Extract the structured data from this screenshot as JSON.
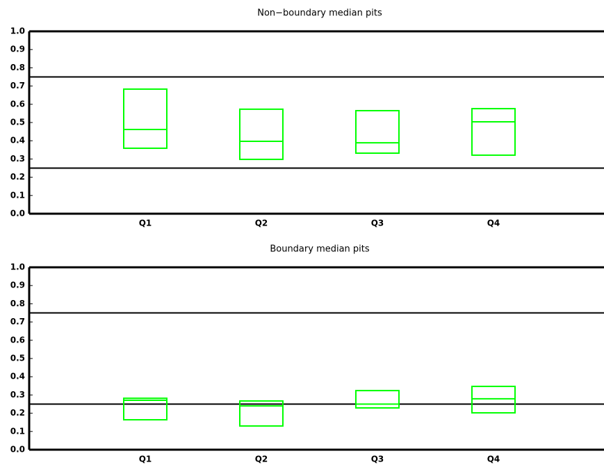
{
  "chart_data": [
    {
      "type": "box",
      "title": "Non−boundary median pits",
      "categories": [
        "Q1",
        "Q2",
        "Q3",
        "Q4"
      ],
      "q1": [
        0.359,
        0.298,
        0.332,
        0.321
      ],
      "median": [
        0.462,
        0.397,
        0.389,
        0.504
      ],
      "q3": [
        0.683,
        0.573,
        0.565,
        0.576
      ],
      "color": "#00ff00",
      "hlines": [
        0.25,
        0.75
      ],
      "ylim": [
        0,
        1
      ],
      "yticks": [
        {
          "value": 0,
          "label": "0.0"
        },
        0.1,
        0.2,
        0.3,
        0.4,
        0.5,
        0.6,
        0.7,
        0.8,
        0.9,
        {
          "value": 1,
          "label": "1.0"
        }
      ]
    },
    {
      "type": "box",
      "title": "Boundary median pits",
      "categories": [
        "Q1",
        "Q2",
        "Q3",
        "Q4"
      ],
      "q1": [
        0.164,
        0.13,
        0.229,
        0.202
      ],
      "median": [
        0.271,
        0.24,
        0.25,
        0.279
      ],
      "q3": [
        0.282,
        0.267,
        0.324,
        0.347
      ],
      "color": "#00ff00",
      "hlines": [
        0.25,
        0.75
      ],
      "ylim": [
        0,
        1
      ],
      "yticks": [
        {
          "value": 0,
          "label": "0.0"
        },
        0.1,
        0.2,
        0.3,
        0.4,
        0.5,
        0.6,
        0.7,
        0.8,
        0.9,
        {
          "value": 1,
          "label": "1.0"
        }
      ]
    }
  ]
}
